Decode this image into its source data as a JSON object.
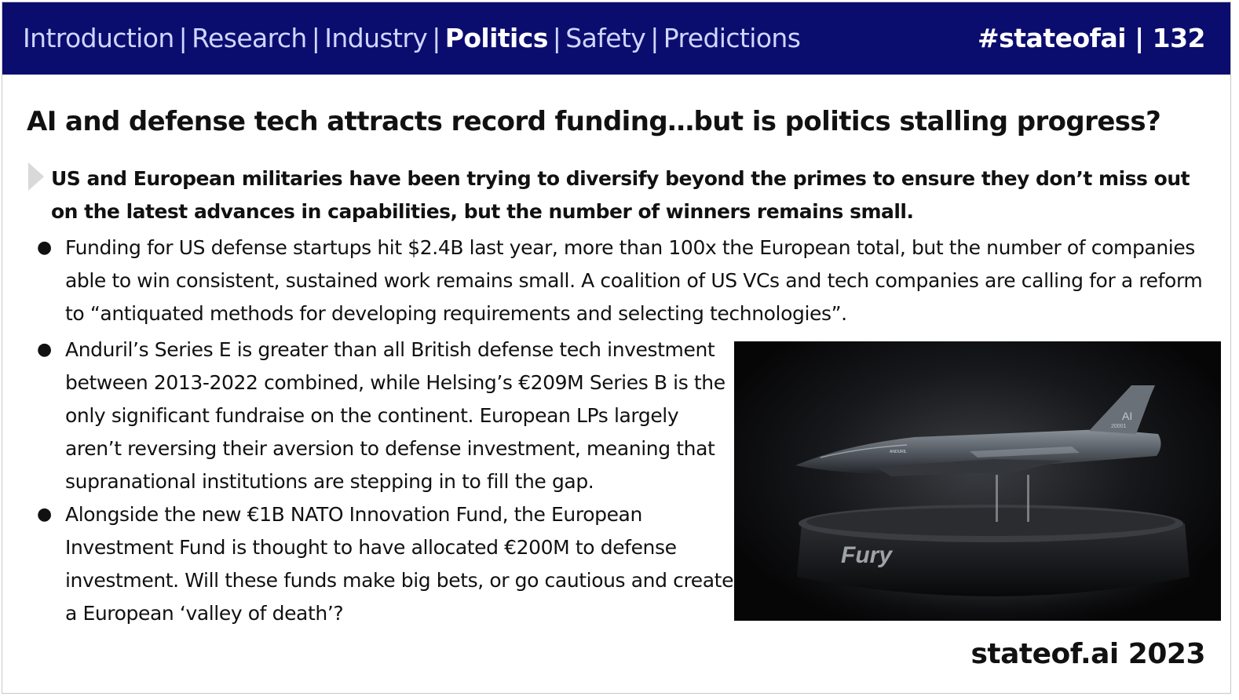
{
  "header": {
    "nav": [
      {
        "label": "Introduction",
        "active": false
      },
      {
        "label": "Research",
        "active": false
      },
      {
        "label": "Industry",
        "active": false
      },
      {
        "label": "Politics",
        "active": true
      },
      {
        "label": "Safety",
        "active": false
      },
      {
        "label": "Predictions",
        "active": false
      }
    ],
    "nav_separator": "|",
    "slide_id": "#stateofai | 132",
    "bg_color": "#0b0d6e"
  },
  "title": "AI and defense tech attracts record funding…but is politics stalling progress?",
  "lead": "US and European militaries have been trying to diversify beyond the primes to ensure they don’t miss out on the latest advances in capabilities, but the number of winners remains small.",
  "bullets": [
    "Funding for US defense startups hit $2.4B last year, more than 100x the European total, but the number of companies able to win consistent, sustained work remains small. A coalition of US VCs and tech companies are calling for a reform to “antiquated methods for developing requirements and selecting technologies”.",
    "Anduril’s Series E is greater than all British defense tech investment between 2013-2022 combined, while Helsing’s €209M Series B is the only significant fundraise on the continent. European LPs largely aren’t reversing their aversion to defense investment, meaning that supranational institutions are stepping in to fill the gap.",
    "Alongside the new €1B NATO Innovation Fund, the European Investment Fund is thought to have allocated €200M to defense investment. Will these funds make big bets, or go cautious and create a European ‘valley of death’?"
  ],
  "bullet_glyph": "●",
  "image": {
    "icon": "aircraft-on-display-stand",
    "pedestal_text": "Fury",
    "tail_text": "AI",
    "tail_number": "20001",
    "fuselage_text": "ANDURIL"
  },
  "footer": "stateof.ai 2023"
}
